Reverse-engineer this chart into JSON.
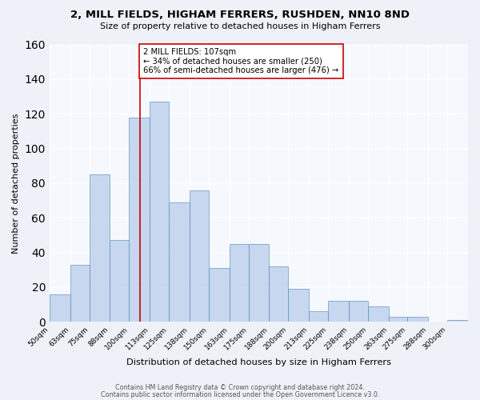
{
  "title1": "2, MILL FIELDS, HIGHAM FERRERS, RUSHDEN, NN10 8ND",
  "title2": "Size of property relative to detached houses in Higham Ferrers",
  "xlabel": "Distribution of detached houses by size in Higham Ferrers",
  "ylabel": "Number of detached properties",
  "bar_edges": [
    50,
    63,
    75,
    88,
    100,
    113,
    125,
    138,
    150,
    163,
    175,
    188,
    200,
    213,
    225,
    238,
    250,
    263,
    275,
    288,
    300,
    313
  ],
  "bar_heights": [
    16,
    33,
    85,
    47,
    118,
    127,
    69,
    76,
    31,
    45,
    45,
    32,
    19,
    6,
    12,
    12,
    9,
    3,
    3,
    0,
    1
  ],
  "bar_color": "#aec6e8",
  "bar_edge_color": "#5a8fc0",
  "vline_x": 107,
  "vline_color": "#cc0000",
  "annotation_text": "2 MILL FIELDS: 107sqm\n← 34% of detached houses are smaller (250)\n66% of semi-detached houses are larger (476) →",
  "annotation_box_color": "#ffffff",
  "annotation_box_edge": "#cc0000",
  "ylim": [
    0,
    160
  ],
  "yticks": [
    0,
    20,
    40,
    60,
    80,
    100,
    120,
    140,
    160
  ],
  "tick_labels": [
    "50sqm",
    "63sqm",
    "75sqm",
    "88sqm",
    "100sqm",
    "113sqm",
    "125sqm",
    "138sqm",
    "150sqm",
    "163sqm",
    "175sqm",
    "188sqm",
    "200sqm",
    "213sqm",
    "225sqm",
    "238sqm",
    "250sqm",
    "263sqm",
    "275sqm",
    "288sqm",
    "300sqm"
  ],
  "footer1": "Contains HM Land Registry data © Crown copyright and database right 2024.",
  "footer2": "Contains public sector information licensed under the Open Government Licence v3.0.",
  "bg_color": "#eef2f8",
  "plot_bg_color": "#f5f8fd"
}
